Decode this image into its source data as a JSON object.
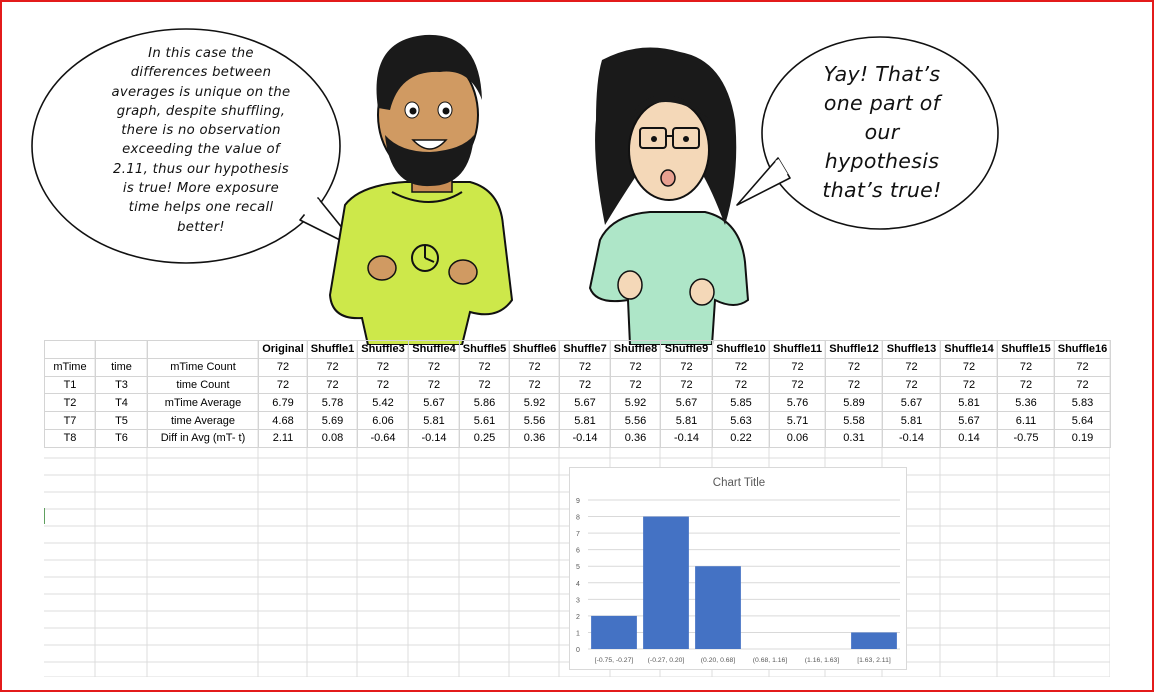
{
  "left_bubble": {
    "lines": [
      "In this case the",
      "differences between",
      "averages is unique on the",
      "graph, despite shuffling,",
      "there is no observation",
      "exceeding the value of",
      "2.11, thus our hypothesis",
      "is true! More exposure",
      "time helps one recall",
      "better!"
    ]
  },
  "right_bubble": {
    "lines": [
      "Yay! That’s",
      "one part of",
      "our",
      "hypothesis",
      "that’s true!"
    ]
  },
  "colors": {
    "frame": "#e31b1b",
    "boy_shirt": "#cde84a",
    "girl_shirt": "#aee6c8",
    "bar": "#4472c4"
  },
  "table": {
    "header": [
      "",
      "",
      "",
      "Original",
      "Shuffle1",
      "Shuffle3",
      "Shuffle4",
      "Shuffle5",
      "Shuffle6",
      "Shuffle7",
      "Shuffle8",
      "Shuffle9",
      "Shuffle10",
      "Shuffle11",
      "Shuffle12",
      "Shuffle13",
      "Shuffle14",
      "Shuffle15",
      "Shuffle16"
    ],
    "rows": [
      [
        "mTime",
        "time",
        "mTime Count",
        "72",
        "72",
        "72",
        "72",
        "72",
        "72",
        "72",
        "72",
        "72",
        "72",
        "72",
        "72",
        "72",
        "72",
        "72",
        "72"
      ],
      [
        "T1",
        "T3",
        "time Count",
        "72",
        "72",
        "72",
        "72",
        "72",
        "72",
        "72",
        "72",
        "72",
        "72",
        "72",
        "72",
        "72",
        "72",
        "72",
        "72"
      ],
      [
        "T2",
        "T4",
        "mTime Average",
        "6.79",
        "5.78",
        "5.42",
        "5.67",
        "5.86",
        "5.92",
        "5.67",
        "5.92",
        "5.67",
        "5.85",
        "5.76",
        "5.89",
        "5.67",
        "5.81",
        "5.36",
        "5.83"
      ],
      [
        "T7",
        "T5",
        "time Average",
        "4.68",
        "5.69",
        "6.06",
        "5.81",
        "5.61",
        "5.56",
        "5.81",
        "5.56",
        "5.81",
        "5.63",
        "5.71",
        "5.58",
        "5.81",
        "5.67",
        "6.11",
        "5.64"
      ],
      [
        "T8",
        "T6",
        "Diff in Avg (mT- t)",
        "2.11",
        "0.08",
        "-0.64",
        "-0.14",
        "0.25",
        "0.36",
        "-0.14",
        "0.36",
        "-0.14",
        "0.22",
        "0.06",
        "0.31",
        "-0.14",
        "0.14",
        "-0.75",
        "0.19"
      ]
    ]
  },
  "chart_data": {
    "type": "bar",
    "title": "Chart Title",
    "categories": [
      "[-0.75, -0.27]",
      "(-0.27, 0.20]",
      "(0.20, 0.68]",
      "(0.68, 1.16]",
      "(1.16, 1.63]",
      "[1.63, 2.11]"
    ],
    "values": [
      2,
      8,
      5,
      0,
      0,
      1
    ],
    "yticks": [
      "0",
      "1",
      "2",
      "3",
      "4",
      "5",
      "6",
      "7",
      "8",
      "9"
    ],
    "ylim": [
      0,
      9
    ],
    "grid": true,
    "bar_color": "#4472c4"
  }
}
